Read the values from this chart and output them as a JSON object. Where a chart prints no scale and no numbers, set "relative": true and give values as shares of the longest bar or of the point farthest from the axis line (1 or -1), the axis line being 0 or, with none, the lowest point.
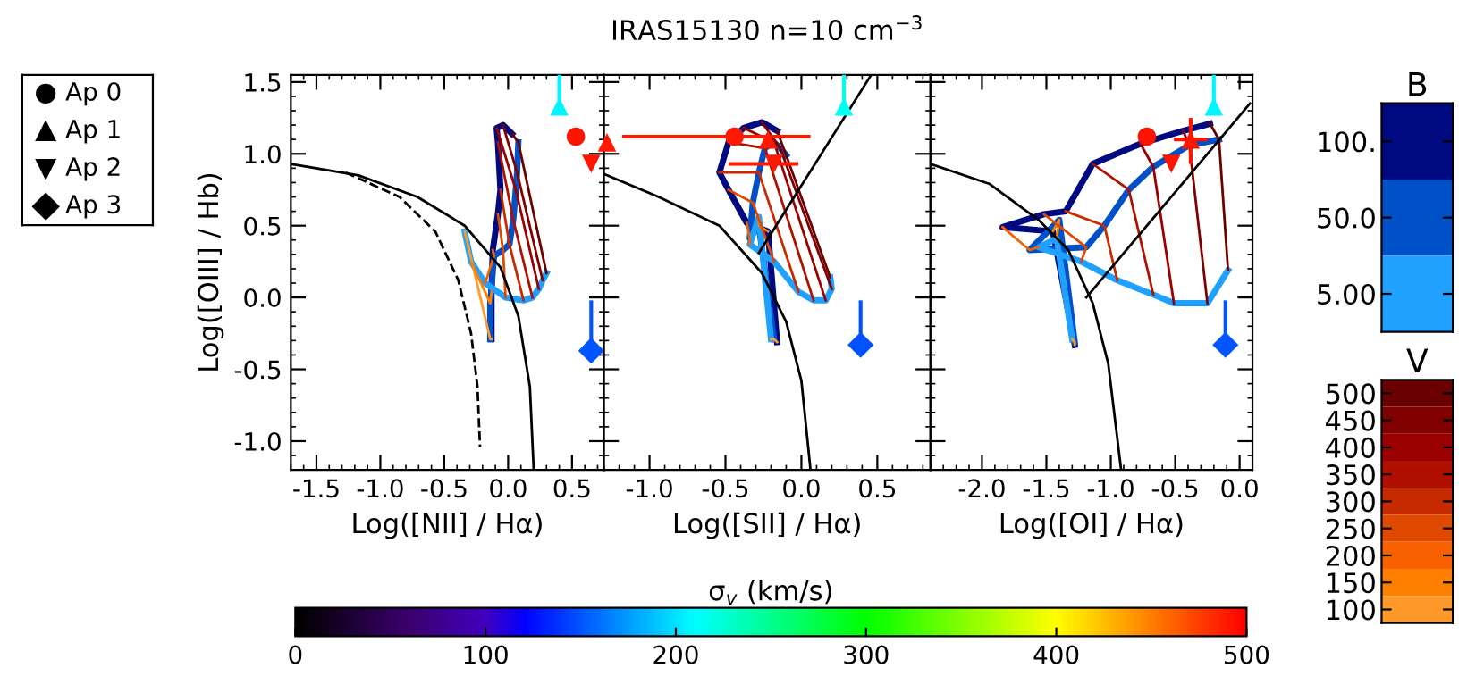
{
  "chart_data": [
    {
      "type": "line",
      "xlabel": "Log([NII] / Hα)",
      "ylabel": "Log([OIII] / Hb)",
      "xlim": [
        -1.7,
        0.75
      ],
      "ylim": [
        -1.2,
        1.55
      ],
      "xticks": [
        {
          "value": -1.5,
          "label": "-1.5"
        },
        {
          "value": -1.0,
          "label": "-1.0"
        },
        {
          "value": -0.5,
          "label": "-0.5"
        },
        {
          "value": 0.0,
          "label": "0.0"
        },
        {
          "value": 0.5,
          "label": "0.5"
        }
      ],
      "yticks": [
        {
          "value": -1.0,
          "label": "-1.0"
        },
        {
          "value": -0.5,
          "label": "-0.5"
        },
        {
          "value": 0.0,
          "label": "0.0"
        },
        {
          "value": 0.5,
          "label": "0.5"
        },
        {
          "value": 1.0,
          "label": "1.0"
        },
        {
          "value": 1.5,
          "label": "1.5"
        }
      ],
      "series": [
        {
          "color": "#000a80",
          "x": [
            -0.13,
            -0.13,
            -0.12,
            -0.08,
            -0.06,
            -0.08,
            -0.09,
            -0.04,
            0.03
          ],
          "values": [
            -0.29,
            0.04,
            0.33,
            0.58,
            0.75,
            1.08,
            1.18,
            1.2,
            1.14
          ]
        },
        {
          "color": "#0050c8",
          "x": [
            -0.14,
            -0.14,
            -0.11,
            -0.04,
            0.01,
            0.04,
            0.06,
            0.07,
            0.08
          ],
          "values": [
            -0.29,
            -0.04,
            0.29,
            0.33,
            0.37,
            0.54,
            0.75,
            0.87,
            1.08
          ]
        },
        {
          "color": "#20a0ff",
          "x": [
            -0.34,
            -0.29,
            -0.18,
            -0.02,
            0.12,
            0.19,
            0.24,
            0.27,
            0.3
          ],
          "values": [
            0.46,
            0.25,
            0.1,
            0.0,
            -0.02,
            0.0,
            0.06,
            0.12,
            0.17
          ]
        },
        {
          "color": "#ff9a2a",
          "x": [
            -0.13,
            -0.14,
            -0.34
          ],
          "values": [
            -0.29,
            -0.29,
            0.46
          ]
        },
        {
          "color": "#ff7f00",
          "x": [
            -0.13,
            -0.14,
            -0.29
          ],
          "values": [
            0.04,
            -0.04,
            0.25
          ]
        },
        {
          "color": "#f86000",
          "x": [
            -0.12,
            -0.11,
            -0.18
          ],
          "values": [
            0.33,
            0.29,
            0.1
          ]
        },
        {
          "color": "#e04a00",
          "x": [
            -0.08,
            -0.04,
            -0.02
          ],
          "values": [
            0.58,
            0.33,
            0.0
          ]
        },
        {
          "color": "#c82a00",
          "x": [
            -0.06,
            0.01,
            0.12
          ],
          "values": [
            0.75,
            0.37,
            -0.02
          ]
        },
        {
          "color": "#b01000",
          "x": [
            -0.08,
            0.04,
            0.19
          ],
          "values": [
            1.08,
            0.54,
            0.0
          ]
        },
        {
          "color": "#9a0000",
          "x": [
            -0.09,
            0.06,
            0.24
          ],
          "values": [
            1.18,
            0.75,
            0.06
          ]
        },
        {
          "color": "#800000",
          "x": [
            -0.04,
            0.07,
            0.27
          ],
          "values": [
            1.2,
            0.87,
            0.12
          ]
        },
        {
          "color": "#6a0000",
          "x": [
            0.03,
            0.08,
            0.3
          ],
          "values": [
            1.14,
            1.08,
            0.17
          ]
        },
        {
          "color": "#000000",
          "x": [
            -1.7,
            -1.17,
            -0.71,
            -0.34,
            -0.06,
            0.08,
            0.17,
            0.2
          ],
          "values": [
            0.93,
            0.85,
            0.7,
            0.5,
            0.21,
            -0.13,
            -0.62,
            -1.2
          ]
        },
        {
          "color": "#000000",
          "line_style": "dashed",
          "x": [
            -1.27,
            -0.85,
            -0.57,
            -0.39,
            -0.29,
            -0.24,
            -0.22
          ],
          "values": [
            0.87,
            0.7,
            0.46,
            0.12,
            -0.25,
            -0.62,
            -1.04
          ]
        },
        {
          "type": "scatter",
          "marker": "circle",
          "color": "#ff1400",
          "x": [
            0.53
          ],
          "values": [
            1.12
          ]
        },
        {
          "type": "scatter",
          "marker": "triangle",
          "color": "#00f5ff",
          "x": [
            0.4
          ],
          "values": [
            1.33
          ],
          "errors": [
            [
              1.33,
              1.55
            ]
          ]
        },
        {
          "type": "scatter",
          "marker": "triangle_down",
          "color": "#ff1400",
          "x": [
            0.65
          ],
          "values": [
            0.93
          ]
        },
        {
          "type": "scatter",
          "marker": "diamond",
          "color": "#0055ff",
          "x": [
            0.65
          ],
          "values": [
            -0.37
          ],
          "errors": [
            [
              -0.37,
              -0.02
            ]
          ]
        }
      ]
    },
    {
      "type": "line",
      "title": "IRAS15130 n=10 cm$^{−3}$",
      "xlabel": "Log([SII] / Hα)",
      "xlim": [
        -1.3,
        0.85
      ],
      "ylim": [
        -1.2,
        1.55
      ],
      "xticks": [
        {
          "value": -1.0,
          "label": "-1.0"
        },
        {
          "value": -0.5,
          "label": "-0.5"
        },
        {
          "value": 0.0,
          "label": "0.0"
        },
        {
          "value": 0.5,
          "label": "0.5"
        }
      ],
      "yticks": [
        -1.0,
        -0.5,
        0.0,
        0.5,
        1.0,
        1.5
      ],
      "tick_labels": "x",
      "clabel": "σ$_{v}$ (km/s)",
      "clim": [
        0,
        500
      ],
      "cticks": [
        0,
        100,
        200,
        300,
        400,
        500
      ],
      "series": [
        {
          "color": "#000a80",
          "x": [
            -0.16,
            -0.22,
            -0.36,
            -0.48,
            -0.54,
            -0.48,
            -0.38,
            -0.26,
            -0.16
          ],
          "values": [
            -0.31,
            0.46,
            0.52,
            0.75,
            0.87,
            1.08,
            1.18,
            1.22,
            1.16
          ]
        },
        {
          "color": "#0050c8",
          "x": [
            -0.18,
            -0.28,
            -0.34,
            -0.32,
            -0.28,
            -0.24,
            -0.18,
            -0.14,
            -0.1
          ],
          "values": [
            -0.29,
            0.5,
            0.41,
            0.66,
            0.87,
            1.04,
            1.08,
            1.04,
            0.99
          ]
        },
        {
          "color": "#20a0ff",
          "x": [
            -0.2,
            -0.28,
            -0.34,
            -0.18,
            -0.02,
            0.08,
            0.16,
            0.2,
            0.19
          ],
          "values": [
            -0.29,
            0.56,
            0.37,
            0.25,
            0.04,
            -0.02,
            -0.02,
            0.06,
            0.14
          ]
        },
        {
          "color": "#ff9a2a",
          "x": [
            -0.16,
            -0.18,
            -0.2
          ],
          "values": [
            -0.31,
            -0.29,
            -0.29
          ]
        },
        {
          "color": "#ff7f00",
          "x": [
            -0.22,
            -0.28,
            -0.28
          ],
          "values": [
            0.46,
            0.5,
            0.56
          ]
        },
        {
          "color": "#f86000",
          "x": [
            -0.36,
            -0.34,
            -0.34
          ],
          "values": [
            0.52,
            0.41,
            0.37
          ]
        },
        {
          "color": "#e04a00",
          "x": [
            -0.48,
            -0.32,
            -0.18
          ],
          "values": [
            0.75,
            0.66,
            0.25
          ]
        },
        {
          "color": "#c82a00",
          "x": [
            -0.54,
            -0.28,
            -0.02
          ],
          "values": [
            0.87,
            0.87,
            0.04
          ]
        },
        {
          "color": "#b01000",
          "x": [
            -0.48,
            -0.24,
            0.08
          ],
          "values": [
            1.08,
            1.04,
            -0.02
          ]
        },
        {
          "color": "#9a0000",
          "x": [
            -0.38,
            -0.18,
            0.16
          ],
          "values": [
            1.18,
            1.08,
            -0.02
          ]
        },
        {
          "color": "#800000",
          "x": [
            -0.26,
            -0.14,
            0.2
          ],
          "values": [
            1.22,
            1.04,
            0.06
          ]
        },
        {
          "color": "#6a0000",
          "x": [
            -0.16,
            -0.1,
            0.19
          ],
          "values": [
            1.16,
            0.99,
            0.14
          ]
        },
        {
          "color": "#000000",
          "x": [
            -1.3,
            -0.94,
            -0.54,
            -0.26,
            -0.1,
            0.0,
            0.06
          ],
          "values": [
            0.86,
            0.7,
            0.5,
            0.17,
            -0.17,
            -0.58,
            -1.2
          ]
        },
        {
          "color": "#000000",
          "x": [
            -0.28,
            0.46
          ],
          "values": [
            0.31,
            1.55
          ]
        },
        {
          "type": "scatter",
          "marker": "circle",
          "x": [
            -0.44
          ],
          "values": [
            1.12
          ],
          "cvalues": [
            490
          ],
          "xerrors": [
            [
              -1.18,
              0.06
            ]
          ]
        },
        {
          "type": "scatter",
          "marker": "triangle",
          "x": [
            -1.28,
            -0.22
          ],
          "values": [
            1.08,
            1.1
          ],
          "cvalues": [
            490,
            490
          ]
        },
        {
          "type": "scatter",
          "marker": "triangle",
          "x": [
            0.28
          ],
          "values": [
            1.33
          ],
          "cvalues": [
            215
          ],
          "errors": [
            [
              1.33,
              1.55
            ]
          ]
        },
        {
          "type": "scatter",
          "marker": "triangle_down",
          "x": [
            -0.18
          ],
          "values": [
            0.93
          ],
          "cvalues": [
            490
          ],
          "xerrors": [
            [
              -0.48,
              -0.02
            ]
          ]
        },
        {
          "type": "scatter",
          "marker": "diamond",
          "x": [
            0.39
          ],
          "values": [
            -0.33
          ],
          "cvalues": [
            150
          ],
          "errors": [
            [
              -0.33,
              -0.02
            ]
          ]
        }
      ]
    },
    {
      "type": "line",
      "xlabel": "Log([OI] / Hα)",
      "xlim": [
        -2.4,
        0.1
      ],
      "ylim": [
        -1.2,
        1.55
      ],
      "xticks": [
        {
          "value": -2.0,
          "label": "-2.0"
        },
        {
          "value": -1.5,
          "label": "-1.5"
        },
        {
          "value": -1.0,
          "label": "-1.0"
        },
        {
          "value": -0.5,
          "label": "-0.5"
        },
        {
          "value": 0.0,
          "label": "0.0"
        }
      ],
      "yticks": [
        -1.0,
        -0.5,
        0.0,
        0.5,
        1.0,
        1.5
      ],
      "tick_labels": "x",
      "series": [
        {
          "color": "#000a80",
          "x": [
            -1.28,
            -1.45,
            -1.84,
            -1.52,
            -1.35,
            -1.14,
            -0.77,
            -0.44,
            -0.23
          ],
          "values": [
            -0.33,
            0.46,
            0.49,
            0.58,
            0.6,
            0.93,
            1.07,
            1.16,
            1.21
          ]
        },
        {
          "color": "#0050c8",
          "x": [
            -1.28,
            -1.4,
            -1.63,
            -1.19,
            -1.05,
            -0.86,
            -0.67,
            -0.39,
            -0.16
          ],
          "values": [
            -0.31,
            0.54,
            0.33,
            0.35,
            0.5,
            0.75,
            0.91,
            1.06,
            1.1
          ]
        },
        {
          "color": "#20a0ff",
          "x": [
            -1.3,
            -1.42,
            -1.56,
            -1.23,
            -0.95,
            -0.67,
            -0.51,
            -0.25,
            -0.09
          ],
          "values": [
            -0.29,
            0.41,
            0.35,
            0.25,
            0.12,
            0.02,
            -0.04,
            -0.04,
            0.19
          ]
        },
        {
          "color": "#ff9a2a",
          "x": [
            -1.28,
            -1.28,
            -1.3
          ],
          "values": [
            -0.33,
            -0.31,
            -0.29
          ]
        },
        {
          "color": "#ff7f00",
          "x": [
            -1.45,
            -1.4,
            -1.42
          ],
          "values": [
            0.46,
            0.54,
            0.41
          ]
        },
        {
          "color": "#f86000",
          "x": [
            -1.84,
            -1.63,
            -1.56
          ],
          "values": [
            0.49,
            0.33,
            0.35
          ]
        },
        {
          "color": "#e04a00",
          "x": [
            -1.52,
            -1.19,
            -1.23
          ],
          "values": [
            0.58,
            0.35,
            0.25
          ]
        },
        {
          "color": "#c82a00",
          "x": [
            -1.35,
            -1.05,
            -0.95
          ],
          "values": [
            0.6,
            0.5,
            0.12
          ]
        },
        {
          "color": "#b01000",
          "x": [
            -1.14,
            -0.86,
            -0.67
          ],
          "values": [
            0.93,
            0.75,
            0.02
          ]
        },
        {
          "color": "#9a0000",
          "x": [
            -0.77,
            -0.67,
            -0.51
          ],
          "values": [
            1.07,
            0.91,
            -0.04
          ]
        },
        {
          "color": "#800000",
          "x": [
            -0.44,
            -0.39,
            -0.25
          ],
          "values": [
            1.16,
            1.06,
            -0.04
          ]
        },
        {
          "color": "#6a0000",
          "x": [
            -0.23,
            -0.16,
            -0.09
          ],
          "values": [
            1.21,
            1.1,
            0.19
          ]
        },
        {
          "color": "#000000",
          "x": [
            -2.4,
            -1.94,
            -1.56,
            -1.33,
            -1.14,
            -1.02,
            -0.92
          ],
          "values": [
            0.93,
            0.79,
            0.54,
            0.33,
            -0.04,
            -0.46,
            -1.2
          ]
        },
        {
          "color": "#000000",
          "x": [
            -1.19,
            0.08
          ],
          "values": [
            0.0,
            1.35
          ]
        },
        {
          "type": "scatter",
          "marker": "circle",
          "color": "#ff1400",
          "x": [
            -0.72
          ],
          "values": [
            1.12
          ]
        },
        {
          "type": "scatter",
          "marker": "triangle",
          "color": "#ff1400",
          "x": [
            -0.38
          ],
          "values": [
            1.1
          ],
          "errors": [
            [
              0.93,
              1.25
            ]
          ],
          "xerrors": [
            [
              -0.51,
              -0.25
            ]
          ]
        },
        {
          "type": "scatter",
          "marker": "triangle",
          "color": "#00f5ff",
          "x": [
            -0.2
          ],
          "values": [
            1.33
          ],
          "errors": [
            [
              1.33,
              1.55
            ]
          ]
        },
        {
          "type": "scatter",
          "marker": "triangle_down",
          "color": "#ff1400",
          "x": [
            -0.53
          ],
          "values": [
            0.93
          ]
        },
        {
          "type": "scatter",
          "marker": "diamond",
          "color": "#0055ff",
          "x": [
            -0.11
          ],
          "values": [
            -0.33
          ],
          "errors": [
            [
              -0.33,
              -0.02
            ]
          ]
        }
      ]
    },
    {
      "type": "other",
      "categories": [
        "Ap 0",
        "Ap 1",
        "Ap 2",
        "Ap 3"
      ]
    },
    {
      "type": "bar",
      "orientation": "horizontal",
      "relative": true,
      "title": "B",
      "categories": [
        "100.",
        "50.0",
        "5.00"
      ],
      "values": [
        1,
        1,
        1
      ],
      "colors": [
        "#000a80",
        "#0050c8",
        "#20a0ff"
      ]
    },
    {
      "type": "bar",
      "orientation": "horizontal",
      "relative": true,
      "title": "V",
      "categories": [
        "500",
        "450",
        "400",
        "350",
        "300",
        "250",
        "200",
        "150",
        "100"
      ],
      "values": [
        1,
        1,
        1,
        1,
        1,
        1,
        1,
        1,
        1
      ],
      "colors": [
        "#6a0000",
        "#800000",
        "#9a0000",
        "#b01000",
        "#c82a00",
        "#e04a00",
        "#f86000",
        "#ff7f00",
        "#ff9a2a"
      ]
    }
  ]
}
